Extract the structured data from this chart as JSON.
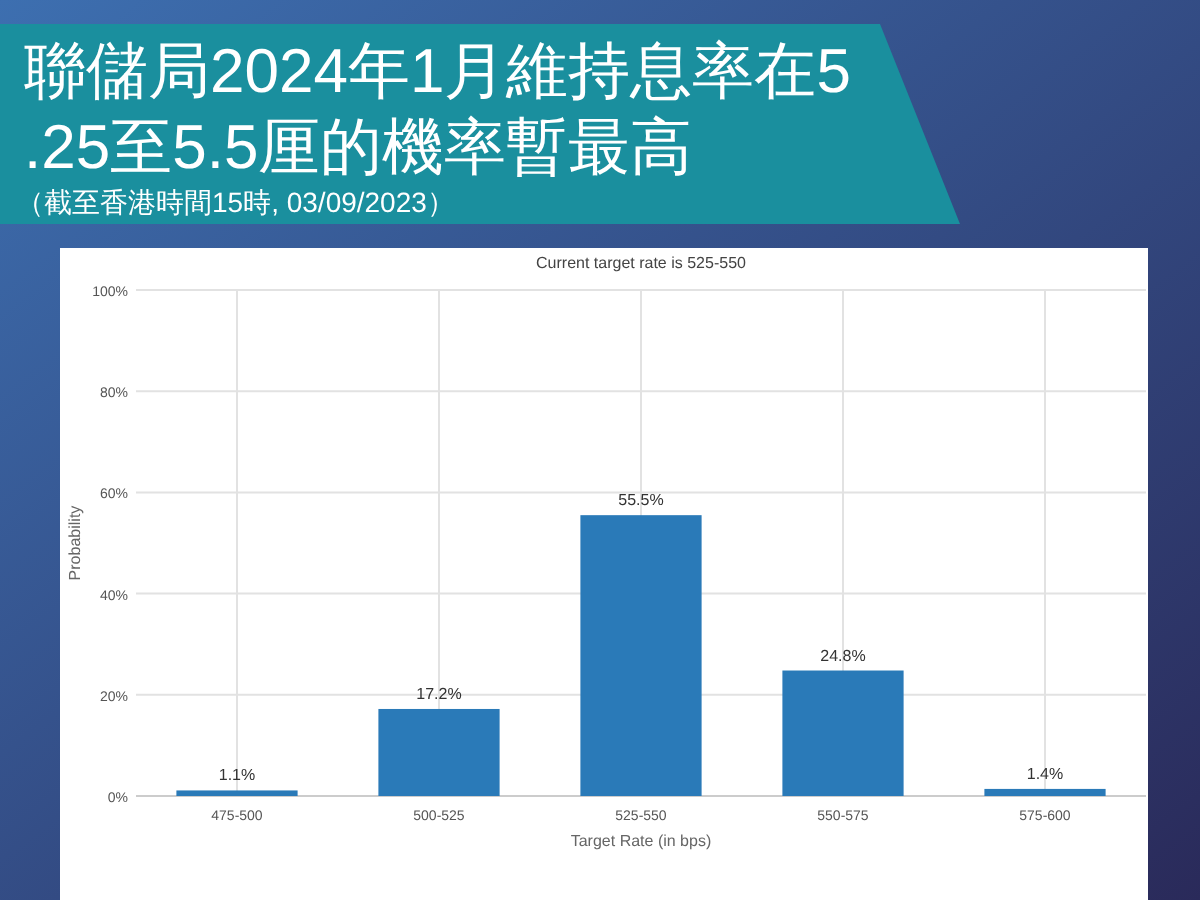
{
  "chart_data": {
    "type": "bar",
    "title": "聯儲局2024年1月維持息率在5.25至5.5厘的機率暫最高",
    "subtitle": "Current target rate is 525-550",
    "annotations": [
      "（截至香港時間15時, 03/09/2023）"
    ],
    "xlabel": "Target Rate (in bps)",
    "ylabel": "Probability",
    "categories": [
      "475-500",
      "500-525",
      "525-550",
      "550-575",
      "575-600"
    ],
    "values": [
      1.1,
      17.2,
      55.5,
      24.8,
      1.4
    ],
    "value_labels": [
      "1.1%",
      "17.2%",
      "55.5%",
      "24.8%",
      "1.4%"
    ],
    "color": "#2a7ab8",
    "ylim": [
      0,
      100
    ],
    "yticks": [
      {
        "value": 0,
        "label": "0%"
      },
      {
        "value": 20,
        "label": "20%"
      },
      {
        "value": 40,
        "label": "40%"
      },
      {
        "value": 60,
        "label": "60%"
      },
      {
        "value": 80,
        "label": "80%"
      },
      {
        "value": 100,
        "label": "100%"
      }
    ],
    "grid": true
  }
}
